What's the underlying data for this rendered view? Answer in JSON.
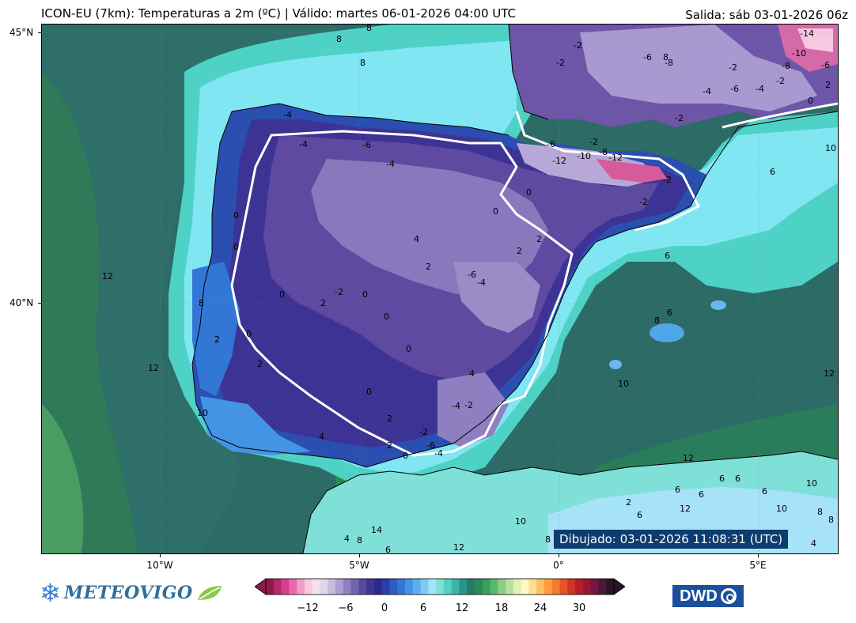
{
  "header": {
    "title": "ICON-EU (7km): Temperaturas a 2m (ºC) | Válido: martes 06-01-2026 04:00 UTC",
    "run": "Salida: sáb 03-01-2026 06z"
  },
  "axes": {
    "lat_labels": [
      "45°N",
      "40°N"
    ],
    "lon_labels": [
      "10°W",
      "5°W",
      "0°",
      "5°E"
    ]
  },
  "drawn_label": "Dibujado: 03-01-2026 11:08:31 (UTC)",
  "colorbar": {
    "ticks": [
      "−12",
      "−6",
      "0",
      "6",
      "12",
      "18",
      "24",
      "30"
    ],
    "colors": [
      "#8b1a4a",
      "#b52a6b",
      "#d63f8c",
      "#e86aa8",
      "#f29cc6",
      "#f9c8e0",
      "#f2e2ee",
      "#e0d6ea",
      "#c8bde0",
      "#ab9fd0",
      "#8e80c0",
      "#7464b0",
      "#5a48a0",
      "#433494",
      "#2e2a8a",
      "#2a3fa8",
      "#2d5cc4",
      "#3377d6",
      "#4494e4",
      "#5ab0ee",
      "#7dcaf4",
      "#a6e2f8",
      "#7fe0d8",
      "#55cfc4",
      "#3ab5a8",
      "#2a9488",
      "#257a6a",
      "#2a8a55",
      "#3aa05a",
      "#5ab86a",
      "#8ccc80",
      "#b8e0a0",
      "#e0f0b8",
      "#fff8c0",
      "#ffe090",
      "#ffc060",
      "#ff9c40",
      "#f57a30",
      "#e65528",
      "#d03424",
      "#b81c28",
      "#961834",
      "#741640",
      "#4a1838",
      "#2a1428"
    ]
  },
  "logos": {
    "meteovigo": "METEOVIGO",
    "dwd": "DWD"
  },
  "map_labels": {
    "land": [
      "-4",
      "-4",
      "-6",
      "-4",
      "-6",
      "-2",
      "-10",
      "-8",
      "-12",
      "-12",
      "-2",
      "-2",
      "0",
      "0",
      "0",
      "2",
      "2",
      "0",
      "2",
      "4",
      "-2",
      "-6",
      "-4",
      "0",
      "2",
      "0",
      "0",
      "2",
      "2",
      "0",
      "4",
      "2",
      "0",
      "-2",
      "-6",
      "-4",
      "-2",
      "-4",
      "0",
      "2",
      "4",
      "0",
      "8",
      "-2",
      "-6",
      "-8",
      "-2",
      "-6",
      "-2",
      "-14",
      "-10",
      "-8",
      "-4",
      "-2",
      "0",
      "2",
      "-2",
      "-4",
      "-6",
      "6"
    ],
    "sea": [
      "8",
      "8",
      "8",
      "12",
      "12",
      "10",
      "12",
      "10",
      "10",
      "8",
      "6",
      "8",
      "6",
      "12",
      "12",
      "6",
      "6",
      "6",
      "10",
      "8",
      "6",
      "10",
      "14",
      "6",
      "12",
      "8",
      "4",
      "8",
      "2",
      "6",
      "6",
      "4",
      "8",
      "10"
    ]
  }
}
